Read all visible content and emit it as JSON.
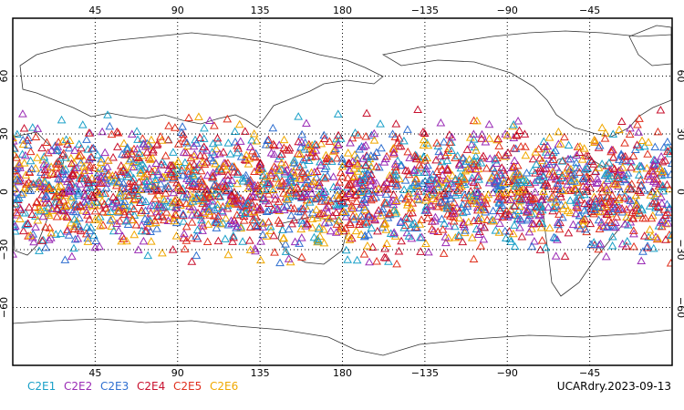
{
  "map": {
    "x_ticks": [
      "45",
      "90",
      "135",
      "180",
      "−135",
      "−90",
      "−45"
    ],
    "x_tick_lons": [
      45,
      90,
      135,
      180,
      225,
      270,
      315
    ],
    "y_ticks": [
      "60",
      "30",
      "0",
      "−30",
      "−60"
    ],
    "y_tick_lats": [
      60,
      30,
      0,
      -30,
      -60
    ],
    "lon_range": [
      0,
      360
    ],
    "lat_range": [
      -90,
      90
    ],
    "gridlines": "dotted",
    "marker": "open-triangle",
    "occultation_lat_range": [
      -42,
      45
    ]
  },
  "legend": {
    "items": [
      {
        "label": "C2E1",
        "color": "#1aa0c8"
      },
      {
        "label": "C2E2",
        "color": "#9a2bb5"
      },
      {
        "label": "C2E3",
        "color": "#2f6fd0"
      },
      {
        "label": "C2E4",
        "color": "#c8102e"
      },
      {
        "label": "C2E5",
        "color": "#e0301e"
      },
      {
        "label": "C2E6",
        "color": "#f0a800"
      }
    ]
  },
  "stamp": "UCARdry.2023-09-13"
}
